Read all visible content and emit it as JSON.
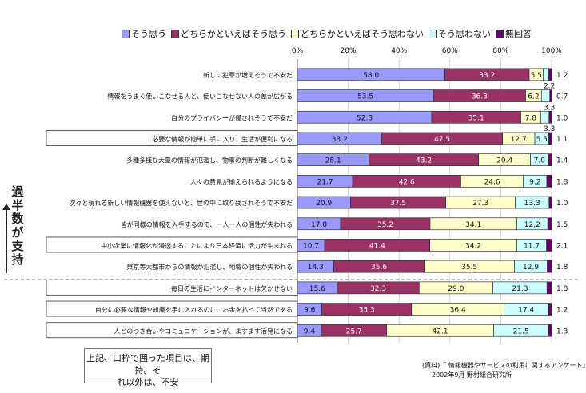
{
  "chart_data": {
    "type": "bar",
    "stacked": "percent",
    "orientation": "horizontal",
    "legend_position": "top",
    "series": [
      {
        "name": "そう思う",
        "color": "#9999ff",
        "values": [
          58.0,
          53.5,
          52.8,
          33.2,
          28.1,
          21.7,
          20.9,
          17.0,
          10.7,
          14.3,
          15.6,
          9.6,
          9.4
        ]
      },
      {
        "name": "どちらかといえばそう思う",
        "color": "#993366",
        "values": [
          33.2,
          36.3,
          35.1,
          47.5,
          43.2,
          42.6,
          37.5,
          35.2,
          41.4,
          35.6,
          32.3,
          35.3,
          25.7
        ]
      },
      {
        "name": "どちらかといえばそう思わない",
        "color": "#ffffcc",
        "values": [
          5.5,
          6.2,
          7.8,
          12.7,
          20.4,
          24.6,
          27.3,
          34.1,
          34.2,
          35.5,
          29.0,
          36.4,
          42.1
        ]
      },
      {
        "name": "そう思わない",
        "color": "#ccffff",
        "values": [
          2.2,
          3.3,
          3.3,
          5.5,
          7.0,
          9.2,
          13.3,
          12.2,
          11.7,
          12.9,
          21.3,
          17.4,
          21.5
        ]
      },
      {
        "name": "無回答",
        "color": "#660066",
        "values": [
          1.2,
          0.7,
          1.0,
          1.1,
          1.4,
          1.8,
          1.0,
          1.5,
          2.1,
          1.8,
          1.8,
          1.2,
          1.3
        ]
      }
    ],
    "categories": [
      "新しい犯罪が増えそうで不安だ",
      "情報をうまく使いこなせる人と、使いこなせない人の差が広がる",
      "自分のプライバシーが侵されそうで不安だ",
      "必要な情報が簡単に手に入り、生活が便利になる",
      "多種多様な大量の情報が氾濫し、物事の判断が難しくなる",
      "人々の意見が揃えられるようになる",
      "次々と現れる新しい情報機器を使えないと、世の中に取り残されそうで不安だ",
      "皆が同様の情報を入手するので、一人一人の個性が失われる",
      "中小企業に情報化が浸透することにより日本経済に活力が生まれる",
      "東京等大都市からの情報が氾濫し、地域の個性が失われる",
      "毎日の生活にインターネットは欠かせない",
      "自分に必要な情報や知識を手に入れるのに、お金を払って当然である",
      "人とのつき合いやコミュニケーションが、ますます活発になる"
    ],
    "boxed_rows": [
      3,
      8,
      10,
      11,
      12
    ],
    "right_labels": [
      "1.2",
      "0.7",
      "1.0",
      "1.1",
      "1.4",
      "1.8",
      "1.0",
      "1.5",
      "2.1",
      "1.8",
      "1.8",
      "1.2",
      "1.3"
    ],
    "top_labels": [
      null,
      "2.2",
      "3.3",
      "3.3",
      null,
      null,
      null,
      null,
      null,
      null,
      null,
      null,
      null
    ],
    "x_ticks": [
      "0%",
      "20%",
      "40%",
      "60%",
      "80%",
      "100%"
    ],
    "xlim": [
      0,
      100
    ],
    "grid": true,
    "dashed_separator_after_row": 9
  },
  "annotation": {
    "vertical_label": "過半数が支持",
    "callout_line1": "上記、口枠で囲った項目は、期持。そ",
    "callout_line2": "れ以外は、不安",
    "source_line1": "(資料)「 情報機器やサービスの利用に関するアンケート」",
    "source_line2": "2002年9月 野村総合研究所"
  }
}
